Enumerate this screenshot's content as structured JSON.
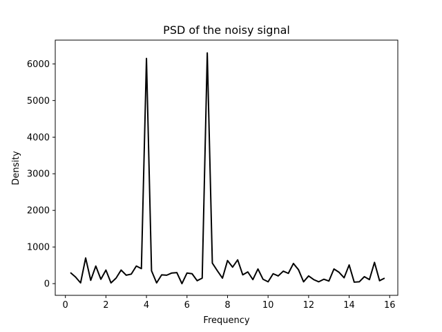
{
  "chart_data": {
    "type": "line",
    "title": "PSD of the noisy signal",
    "xlabel": "Frequency",
    "ylabel": "Density",
    "xlim": [
      -0.5,
      16.4
    ],
    "ylim": [
      -320,
      6650
    ],
    "grid": false,
    "legend": "none",
    "line_color": "#000000",
    "xticks": [
      0,
      2,
      4,
      6,
      8,
      10,
      12,
      14,
      16
    ],
    "yticks": [
      0,
      1000,
      2000,
      3000,
      4000,
      5000,
      6000
    ],
    "x": [
      0.25,
      0.5,
      0.75,
      1.0,
      1.25,
      1.5,
      1.75,
      2.0,
      2.25,
      2.5,
      2.75,
      3.0,
      3.25,
      3.5,
      3.75,
      4.0,
      4.25,
      4.5,
      4.75,
      5.0,
      5.25,
      5.5,
      5.75,
      6.0,
      6.25,
      6.5,
      6.75,
      7.0,
      7.25,
      7.5,
      7.75,
      8.0,
      8.25,
      8.5,
      8.75,
      9.0,
      9.25,
      9.5,
      9.75,
      10.0,
      10.25,
      10.5,
      10.75,
      11.0,
      11.25,
      11.5,
      11.75,
      12.0,
      12.25,
      12.5,
      12.75,
      13.0,
      13.25,
      13.5,
      13.75,
      14.0,
      14.25,
      14.5,
      14.75,
      15.0,
      15.25,
      15.5,
      15.75
    ],
    "series": [
      {
        "values": [
          300,
          180,
          20,
          700,
          90,
          480,
          120,
          370,
          20,
          150,
          370,
          230,
          260,
          480,
          410,
          6150,
          350,
          20,
          240,
          230,
          290,
          300,
          0,
          290,
          270,
          80,
          150,
          6300,
          560,
          350,
          150,
          630,
          450,
          650,
          240,
          320,
          110,
          400,
          120,
          50,
          270,
          210,
          340,
          280,
          550,
          380,
          50,
          210,
          110,
          50,
          120,
          70,
          400,
          310,
          160,
          510,
          40,
          50,
          190,
          110,
          580,
          80,
          150
        ]
      }
    ]
  }
}
